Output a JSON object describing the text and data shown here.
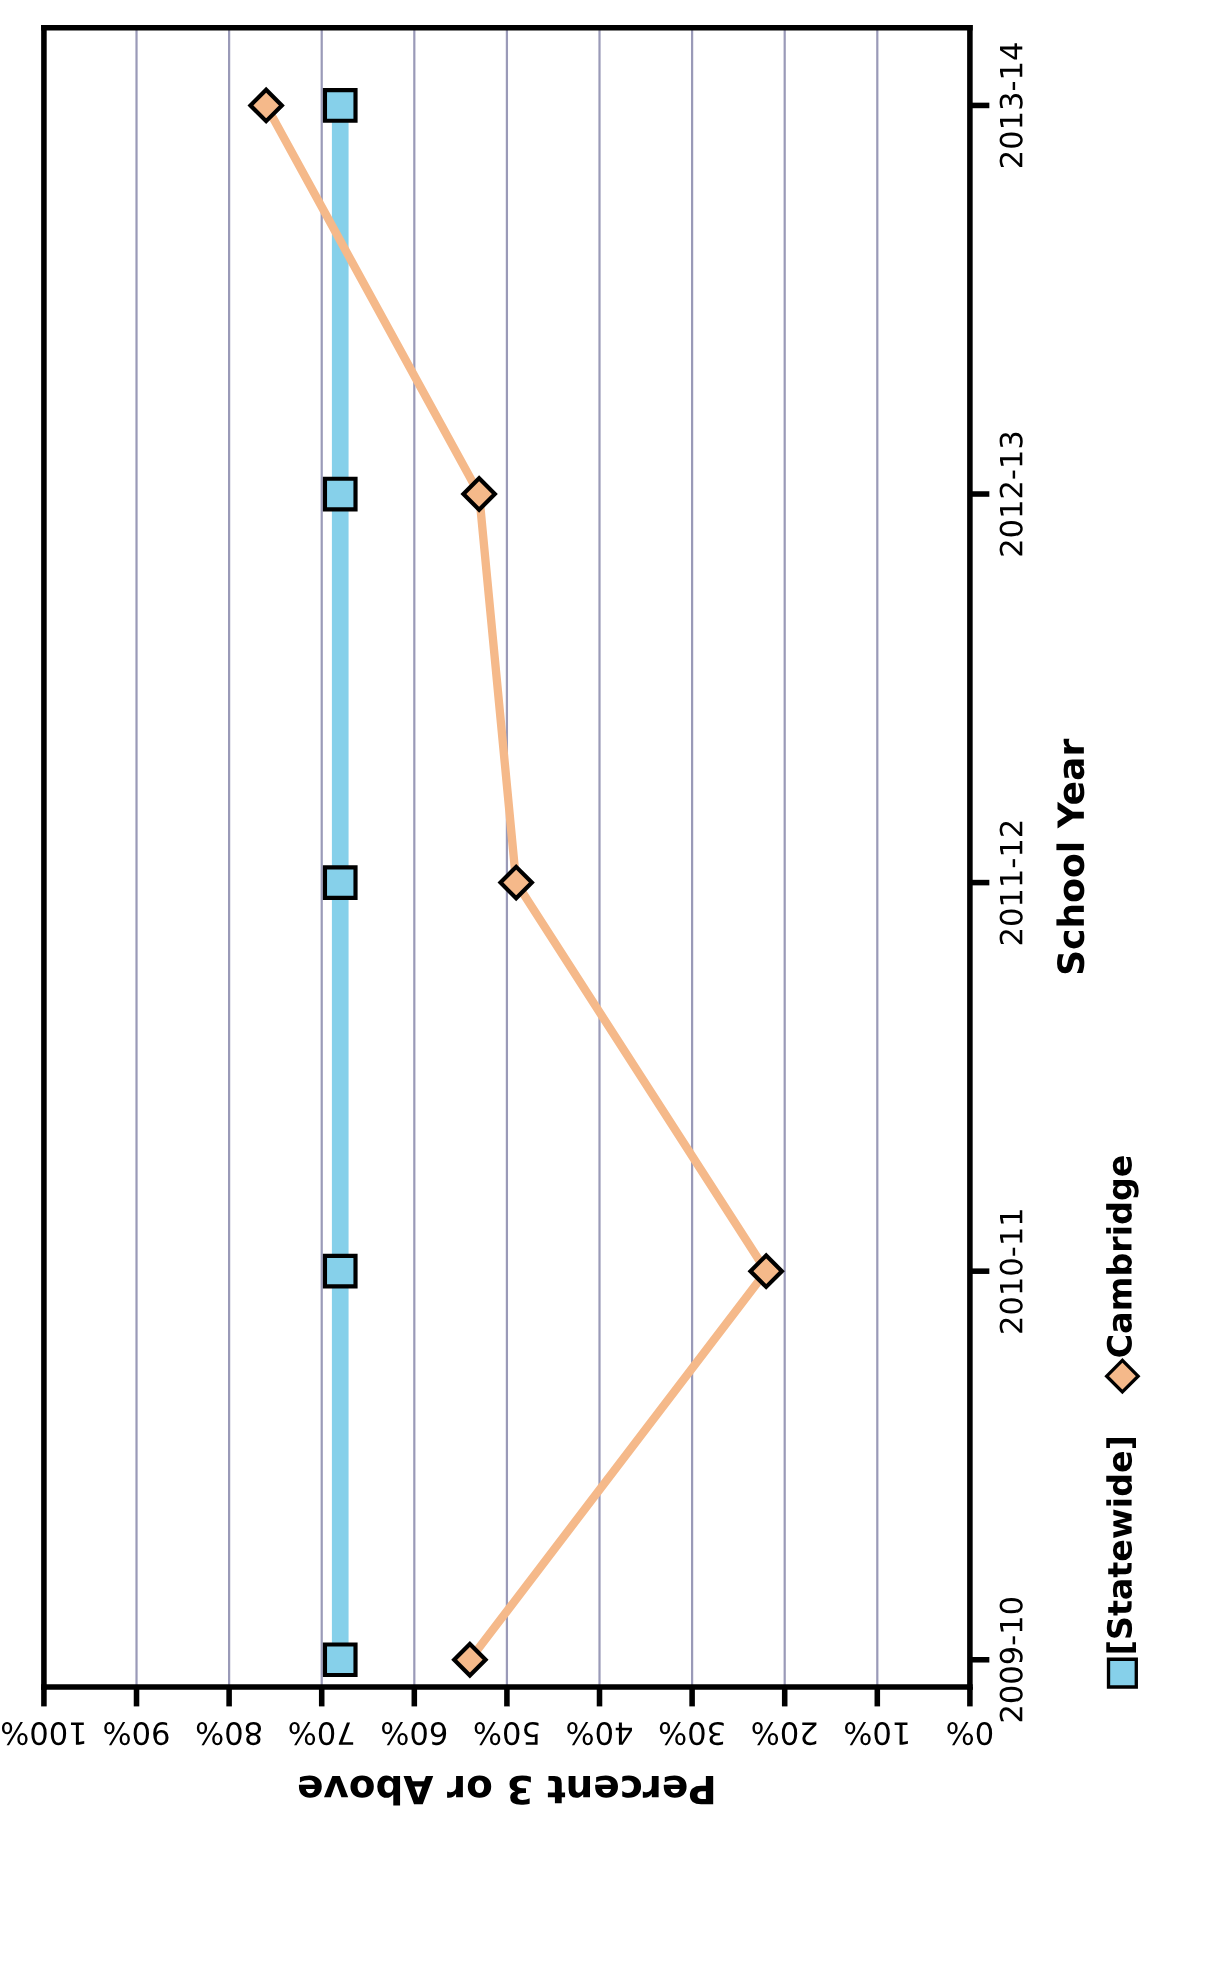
{
  "chart_data": {
    "type": "line",
    "orientation": "horizontal",
    "xlabel": "Percent 3 or Above",
    "ylabel": "School Year",
    "categories": [
      "2013-14",
      "2012-13",
      "2011-12",
      "2010-11",
      "2009-10"
    ],
    "series": [
      {
        "name": "[Statewide]",
        "color": "#86d0ea",
        "marker": "square",
        "values": [
          68,
          68,
          68,
          68,
          68
        ]
      },
      {
        "name": "Cambridge",
        "color": "#f5b98a",
        "marker": "diamond",
        "values": [
          76,
          53,
          49,
          22,
          54
        ]
      }
    ],
    "xlim": [
      100,
      0
    ],
    "xticks": [
      {
        "value": 100,
        "label": "100%"
      },
      {
        "value": 90,
        "label": "90%"
      },
      {
        "value": 80,
        "label": "80%"
      },
      {
        "value": 70,
        "label": "70%"
      },
      {
        "value": 60,
        "label": "60%"
      },
      {
        "value": 50,
        "label": "50%"
      },
      {
        "value": 40,
        "label": "40%"
      },
      {
        "value": 30,
        "label": "30%"
      },
      {
        "value": 20,
        "label": "20%"
      },
      {
        "value": 10,
        "label": "10%"
      },
      {
        "value": 0,
        "label": "0%"
      }
    ],
    "grid": "x",
    "legend": "right"
  }
}
